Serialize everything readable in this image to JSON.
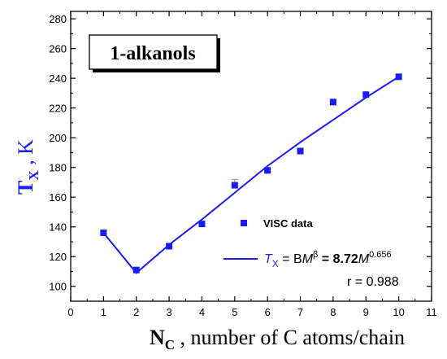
{
  "colors": {
    "series": "#1a1aff",
    "axis": "#000000",
    "error_bar": "#8a8aa0"
  },
  "chart_data": {
    "type": "scatter",
    "inset_title": "1-alkanols",
    "xlabel": {
      "symbol": "N",
      "subscript": "C",
      "rest": " , number of C atoms/chain"
    },
    "ylabel": {
      "symbol": "T",
      "subscript": "X",
      "rest": " , K"
    },
    "xlim": [
      0,
      11
    ],
    "ylim": [
      90,
      285
    ],
    "x_ticks": [
      0,
      1,
      2,
      3,
      4,
      5,
      6,
      7,
      8,
      9,
      10,
      11
    ],
    "y_ticks": [
      100,
      120,
      140,
      160,
      180,
      200,
      220,
      240,
      260,
      280
    ],
    "grid": false,
    "legend_position": "lower-right",
    "series": [
      {
        "name": "VISC data",
        "type": "scatter",
        "marker": "square",
        "x": [
          1,
          2,
          3,
          4,
          5,
          6,
          7,
          8,
          9,
          10
        ],
        "y": [
          136,
          111,
          127,
          142,
          168,
          178,
          191,
          224,
          229,
          241
        ],
        "error": [
          0,
          0,
          0,
          0,
          4,
          2,
          2,
          0,
          0,
          0
        ]
      },
      {
        "name": "fit",
        "type": "line",
        "x": [
          1,
          2,
          3,
          4,
          5,
          6,
          7,
          8,
          9,
          10
        ],
        "y": [
          136,
          109,
          128,
          145,
          163,
          181,
          197,
          212,
          227,
          241
        ]
      }
    ],
    "formula": {
      "lhs_symbol": "T",
      "lhs_subscript": "X",
      "eq1": " = B",
      "m1": "M",
      "exp1": "β",
      "eq2": " = 8.72",
      "m2": "M",
      "exp2": "0.656"
    },
    "r_text": "r = 0.988"
  }
}
